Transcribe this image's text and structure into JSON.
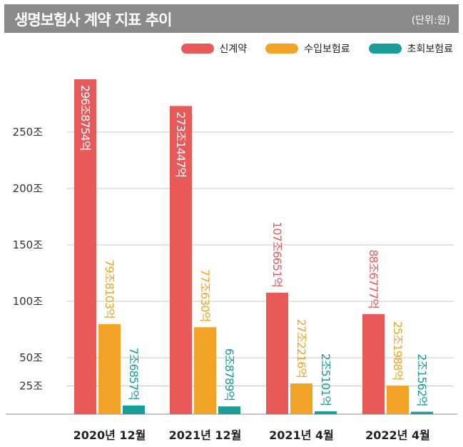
{
  "header": {
    "title": "생명보험사 계약 지표 추이",
    "unit": "(단위:원)"
  },
  "chart_data": {
    "type": "bar",
    "categories": [
      "2020년 12월",
      "2021년 12월",
      "2021년 4월",
      "2022년 4월"
    ],
    "y_ticks": [
      {
        "value": 25,
        "label": "25조"
      },
      {
        "value": 50,
        "label": "50조"
      },
      {
        "value": 100,
        "label": "100조"
      },
      {
        "value": 150,
        "label": "150조"
      },
      {
        "value": 200,
        "label": "200조"
      },
      {
        "value": 250,
        "label": "250조"
      }
    ],
    "ylim": [
      0,
      300
    ],
    "grid": true,
    "legend_position": "top-right",
    "series": [
      {
        "name": "신계약",
        "color": "#e85a5a",
        "values": [
          296.8754,
          273.1447,
          107.6651,
          88.6777
        ],
        "labels": [
          "296조8754억",
          "273조1447억",
          "107조6651억",
          "88조6777억"
        ]
      },
      {
        "name": "수입보험료",
        "color": "#f2a428",
        "values": [
          79.8103,
          77.063,
          27.2216,
          25.1988
        ],
        "labels": [
          "79조8103억",
          "77조630억",
          "27조2216억",
          "25조1988억"
        ]
      },
      {
        "name": "초회보험료",
        "color": "#1a9e9a",
        "values": [
          7.6857,
          6.8789,
          2.5101,
          2.1562
        ],
        "labels": [
          "7조6857억",
          "6조8789억",
          "2조5101억",
          "2조1562억"
        ]
      }
    ]
  }
}
